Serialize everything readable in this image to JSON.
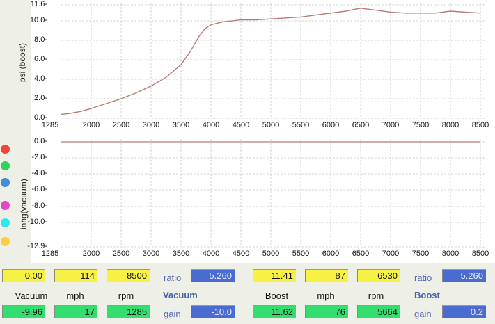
{
  "chart_data": [
    {
      "type": "line",
      "title": "",
      "xlabel": "",
      "ylabel": "psi (boost)",
      "xlim": [
        1285,
        8500
      ],
      "ylim": [
        0.0,
        11.6
      ],
      "x_ticks": [
        "1285",
        "2000",
        "2500",
        "3000",
        "3500",
        "4000",
        "4500",
        "5000",
        "5500",
        "6000",
        "6500",
        "7000",
        "7500",
        "8000",
        "8500"
      ],
      "y_ticks": [
        "11.6",
        "10.0",
        "8.0",
        "6.0",
        "4.0",
        "2.0",
        "0.0"
      ],
      "grid": true,
      "series": [
        {
          "name": "boost",
          "color": "#b87a72",
          "x": [
            1285,
            1500,
            1750,
            2000,
            2250,
            2500,
            2750,
            3000,
            3250,
            3500,
            3650,
            3800,
            3900,
            4000,
            4200,
            4500,
            4750,
            5000,
            5250,
            5500,
            5750,
            6000,
            6250,
            6500,
            6750,
            7000,
            7250,
            7500,
            7750,
            8000,
            8250,
            8500
          ],
          "y": [
            0.4,
            0.5,
            0.7,
            1.0,
            1.5,
            2.0,
            2.6,
            3.3,
            4.2,
            5.5,
            6.8,
            8.4,
            9.2,
            9.6,
            9.9,
            10.1,
            10.1,
            10.2,
            10.3,
            10.4,
            10.6,
            10.8,
            11.0,
            11.3,
            11.1,
            10.9,
            10.8,
            10.8,
            10.8,
            11.0,
            10.9,
            10.8
          ]
        }
      ]
    },
    {
      "type": "line",
      "title": "",
      "xlabel": "",
      "ylabel": "inhg(vacuum)",
      "xlim": [
        1285,
        8500
      ],
      "ylim": [
        -12.9,
        0.0
      ],
      "x_ticks": [
        "1285",
        "2000",
        "2500",
        "3000",
        "3500",
        "4000",
        "4500",
        "5000",
        "5500",
        "6000",
        "6500",
        "7000",
        "7500",
        "8000",
        "8500"
      ],
      "y_ticks": [
        "0.0",
        "-2.0",
        "-4.0",
        "-6.0",
        "-8.0",
        "-10.0",
        "-12.9"
      ],
      "grid": true,
      "series": [
        {
          "name": "vacuum",
          "color": "#b87a72",
          "x": [
            1285,
            8500
          ],
          "y": [
            0.0,
            0.0
          ]
        }
      ]
    }
  ],
  "legend_dots": [
    {
      "name": "red-dot",
      "color": "#f0453a"
    },
    {
      "name": "green-dot",
      "color": "#2ed35e"
    },
    {
      "name": "blue-dot",
      "color": "#3f8fd6"
    },
    {
      "name": "magenta-dot",
      "color": "#e545c8"
    },
    {
      "name": "cyan-dot",
      "color": "#2de8ef"
    },
    {
      "name": "yellow-dot",
      "color": "#f9cf45"
    }
  ],
  "readouts": {
    "vacuum": {
      "title": "Vacuum",
      "max_row": {
        "value": "0.00",
        "mph": "114",
        "rpm": "8500"
      },
      "labels": {
        "value": "Vacuum",
        "mph": "mph",
        "rpm": "rpm"
      },
      "current_row": {
        "value": "-9.96",
        "mph": "17",
        "rpm": "1285"
      },
      "ratio_label": "ratio",
      "ratio": "5.260",
      "gain_label": "gain",
      "gain": "-10.0"
    },
    "boost": {
      "title": "Boost",
      "max_row": {
        "value": "11.41",
        "mph": "87",
        "rpm": "6530"
      },
      "labels": {
        "value": "Boost",
        "mph": "mph",
        "rpm": "rpm"
      },
      "current_row": {
        "value": "11.62",
        "mph": "76",
        "rpm": "5664"
      },
      "ratio_label": "ratio",
      "ratio": "5.260",
      "gain_label": "gain",
      "gain": "0.2"
    }
  }
}
